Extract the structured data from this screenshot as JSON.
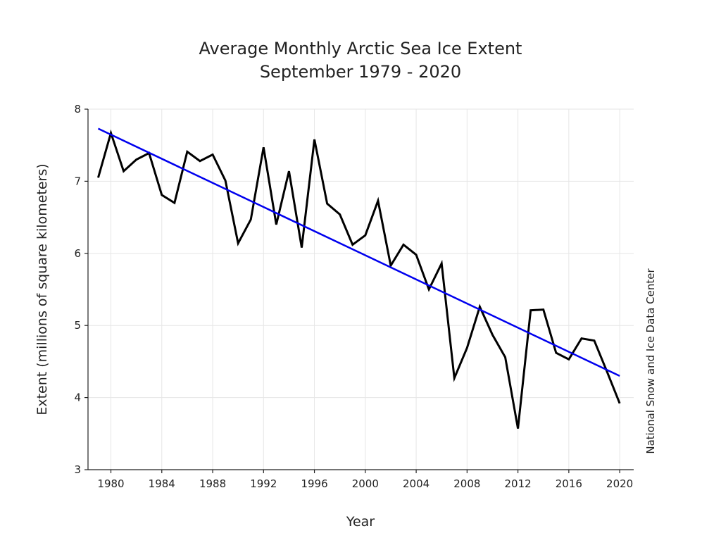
{
  "chart_data": {
    "type": "line",
    "title": "Average Monthly Arctic Sea Ice Extent",
    "subtitle": "September 1979 - 2020",
    "xlabel": "Year",
    "ylabel": "Extent (millions of square kilometers)",
    "credit": "National Snow and Ice Data Center",
    "xlim": [
      1978.2,
      2021.1
    ],
    "ylim": [
      3,
      8
    ],
    "x_ticks": [
      1980,
      1984,
      1988,
      1992,
      1996,
      2000,
      2004,
      2008,
      2012,
      2016,
      2020
    ],
    "y_ticks": [
      3,
      4,
      5,
      6,
      7,
      8
    ],
    "grid": true,
    "series": [
      {
        "color": "#000000",
        "x": [
          1979,
          1980,
          1981,
          1982,
          1983,
          1984,
          1985,
          1986,
          1987,
          1988,
          1989,
          1990,
          1991,
          1992,
          1993,
          1994,
          1995,
          1996,
          1997,
          1998,
          1999,
          2000,
          2001,
          2002,
          2003,
          2004,
          2005,
          2006,
          2007,
          2008,
          2009,
          2010,
          2011,
          2012,
          2013,
          2014,
          2015,
          2016,
          2017,
          2018,
          2019,
          2020
        ],
        "y": [
          7.05,
          7.67,
          7.14,
          7.3,
          7.39,
          6.81,
          6.7,
          7.41,
          7.28,
          7.37,
          7.01,
          6.14,
          6.47,
          7.47,
          6.4,
          7.14,
          6.08,
          7.58,
          6.69,
          6.54,
          6.12,
          6.25,
          6.73,
          5.83,
          6.12,
          5.98,
          5.5,
          5.86,
          4.27,
          4.69,
          5.26,
          4.87,
          4.56,
          3.57,
          5.21,
          5.22,
          4.62,
          4.53,
          4.82,
          4.79,
          4.36,
          3.92
        ]
      },
      {
        "color": "#0000ee",
        "x": [
          1979,
          2020
        ],
        "y": [
          7.73,
          4.3
        ]
      }
    ]
  }
}
